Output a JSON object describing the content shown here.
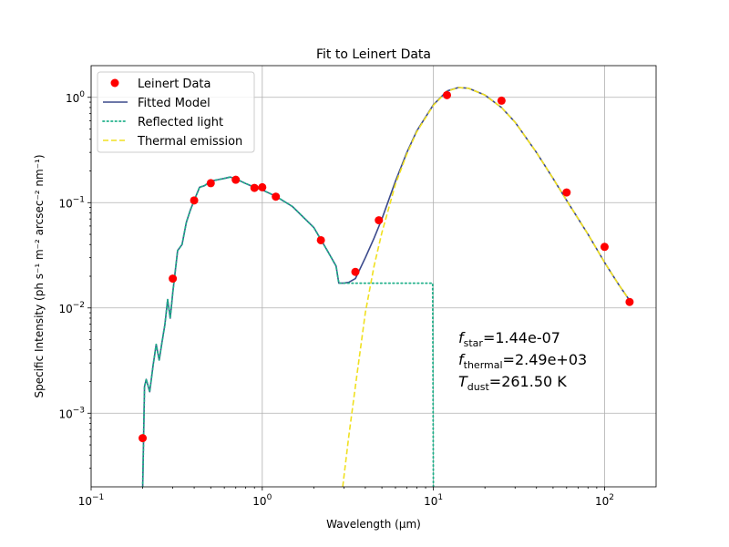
{
  "chart_data": {
    "type": "line",
    "title": "Fit to Leinert Data",
    "xlabel": "Wavelength (μm)",
    "ylabel": "Specific Intensity (ph s⁻¹ m⁻² arcsec⁻² nm⁻¹)",
    "xscale": "log",
    "yscale": "log",
    "xlim": [
      0.1,
      200
    ],
    "ylim": [
      0.0002,
      2.0
    ],
    "x_ticks": [
      {
        "value": 0.1,
        "base": "10",
        "exp": "−1"
      },
      {
        "value": 1,
        "base": "10",
        "exp": "0"
      },
      {
        "value": 10,
        "base": "10",
        "exp": "1"
      },
      {
        "value": 100,
        "base": "10",
        "exp": "2"
      }
    ],
    "y_ticks": [
      {
        "value": 0.001,
        "base": "10",
        "exp": "−3"
      },
      {
        "value": 0.01,
        "base": "10",
        "exp": "−2"
      },
      {
        "value": 0.1,
        "base": "10",
        "exp": "−1"
      },
      {
        "value": 1,
        "base": "10",
        "exp": "0"
      }
    ],
    "grid": true,
    "legend_position": "top-left",
    "series": [
      {
        "name": "Leinert Data",
        "kind": "scatter",
        "color": "#ff0000",
        "x": [
          0.2,
          0.3,
          0.4,
          0.5,
          0.7,
          0.9,
          1.0,
          1.2,
          2.2,
          3.5,
          4.8,
          12,
          25,
          60,
          100,
          140
        ],
        "y": [
          0.00058,
          0.019,
          0.105,
          0.153,
          0.165,
          0.138,
          0.14,
          0.114,
          0.044,
          0.022,
          0.068,
          1.05,
          0.93,
          0.125,
          0.038,
          0.0114
        ]
      },
      {
        "name": "Fitted Model",
        "kind": "line",
        "color": "#3b4a8c",
        "x": [
          0.2,
          0.205,
          0.21,
          0.22,
          0.23,
          0.24,
          0.25,
          0.26,
          0.27,
          0.28,
          0.29,
          0.3,
          0.32,
          0.34,
          0.36,
          0.38,
          0.4,
          0.43,
          0.46,
          0.5,
          0.55,
          0.6,
          0.65,
          0.7,
          0.8,
          0.9,
          1.0,
          1.2,
          1.5,
          2.0,
          2.4,
          2.7,
          2.8,
          3.0,
          3.2,
          3.5,
          4.0,
          4.5,
          5.0,
          6.0,
          7.0,
          8.0,
          10.0,
          12.0,
          14.0,
          16.0,
          20.0,
          25.0,
          30.0,
          40.0,
          50.0,
          60.0,
          80.0,
          100.0,
          120.0,
          140.0
        ],
        "y": [
          0.00018,
          0.0018,
          0.0021,
          0.0016,
          0.0028,
          0.0045,
          0.0032,
          0.0048,
          0.007,
          0.012,
          0.008,
          0.014,
          0.035,
          0.04,
          0.065,
          0.085,
          0.105,
          0.14,
          0.145,
          0.16,
          0.165,
          0.17,
          0.175,
          0.168,
          0.152,
          0.14,
          0.132,
          0.115,
          0.092,
          0.058,
          0.035,
          0.025,
          0.0172,
          0.0172,
          0.0175,
          0.019,
          0.03,
          0.046,
          0.07,
          0.16,
          0.3,
          0.48,
          0.85,
          1.15,
          1.24,
          1.22,
          1.05,
          0.8,
          0.58,
          0.3,
          0.17,
          0.105,
          0.05,
          0.027,
          0.017,
          0.0118
        ]
      },
      {
        "name": "Reflected light",
        "kind": "line",
        "style": "dotted",
        "color": "#20b08a",
        "x": [
          0.2,
          0.205,
          0.21,
          0.22,
          0.23,
          0.24,
          0.25,
          0.26,
          0.27,
          0.28,
          0.29,
          0.3,
          0.32,
          0.34,
          0.36,
          0.38,
          0.4,
          0.43,
          0.46,
          0.5,
          0.55,
          0.6,
          0.65,
          0.7,
          0.8,
          0.9,
          1.0,
          1.2,
          1.5,
          2.0,
          2.4,
          2.7,
          2.8,
          3.0,
          4.0,
          6.0,
          8.0,
          9.9,
          9.99
        ],
        "y": [
          0.00018,
          0.0018,
          0.0021,
          0.0016,
          0.0028,
          0.0045,
          0.0032,
          0.0048,
          0.007,
          0.012,
          0.008,
          0.014,
          0.035,
          0.04,
          0.065,
          0.085,
          0.105,
          0.14,
          0.145,
          0.16,
          0.165,
          0.17,
          0.175,
          0.168,
          0.152,
          0.14,
          0.132,
          0.115,
          0.092,
          0.058,
          0.035,
          0.025,
          0.0172,
          0.0172,
          0.0172,
          0.0172,
          0.0172,
          0.0172,
          0.00018
        ]
      },
      {
        "name": "Thermal emission",
        "kind": "line",
        "style": "dashed",
        "color": "#f0e020",
        "x": [
          2.95,
          3.2,
          3.5,
          4.0,
          4.5,
          5.0,
          6.0,
          7.0,
          8.0,
          10.0,
          12.0,
          14.0,
          16.0,
          20.0,
          25.0,
          30.0,
          40.0,
          50.0,
          60.0,
          80.0,
          100.0,
          120.0,
          140.0
        ],
        "y": [
          0.0002,
          0.0006,
          0.0018,
          0.009,
          0.025,
          0.052,
          0.15,
          0.29,
          0.47,
          0.84,
          1.14,
          1.24,
          1.22,
          1.05,
          0.8,
          0.58,
          0.3,
          0.17,
          0.105,
          0.05,
          0.027,
          0.017,
          0.0118
        ]
      }
    ],
    "annotations": [
      {
        "sym": "f",
        "sub": "star",
        "value": "=1.44e-07"
      },
      {
        "sym": "f",
        "sub": "thermal",
        "value": "=2.49e+03"
      },
      {
        "sym": "T",
        "sub": "dust",
        "value": "=261.50 K"
      }
    ]
  }
}
